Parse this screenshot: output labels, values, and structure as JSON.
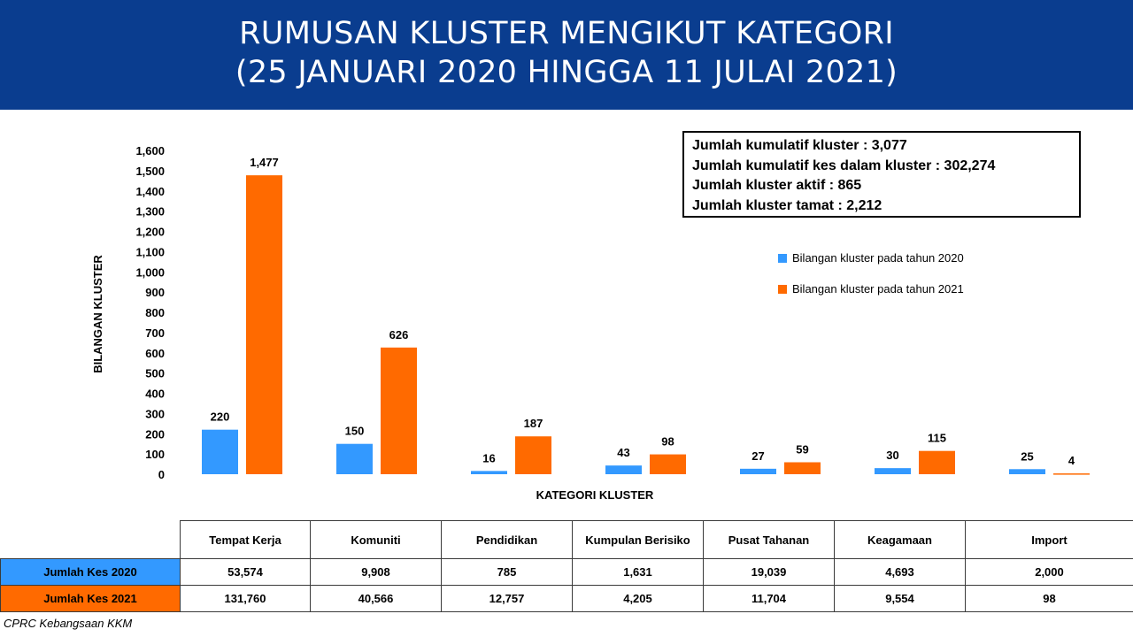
{
  "header": {
    "title_line1": "RUMUSAN KLUSTER MENGIKUT KATEGORI",
    "title_line2": "(25 JANUARI 2020 HINGGA 11 JULAI 2021)"
  },
  "summary": {
    "line1": "Jumlah kumulatif kluster : 3,077",
    "line2": "Jumlah kumulatif kes dalam kluster : 302,274",
    "line3": "Jumlah kluster aktif : 865",
    "line4": "Jumlah kluster tamat : 2,212"
  },
  "legend": {
    "item1": "Bilangan kluster pada tahun 2020",
    "item2": "Bilangan kluster pada tahun 2021"
  },
  "colors": {
    "series2020": "#3399ff",
    "series2021": "#ff6a00",
    "banner": "#0a3d8f"
  },
  "chart_data": {
    "type": "bar",
    "xlabel": "KATEGORI KLUSTER",
    "ylabel": "BILANGAN KLUSTER",
    "ylim": [
      0,
      1600
    ],
    "yticks": [
      "0",
      "100",
      "200",
      "300",
      "400",
      "500",
      "600",
      "700",
      "800",
      "900",
      "1,000",
      "1,100",
      "1,200",
      "1,300",
      "1,400",
      "1,500",
      "1,600"
    ],
    "categories": [
      "Tempat Kerja",
      "Komuniti",
      "Pendidikan",
      "Kumpulan Berisiko",
      "Pusat Tahanan",
      "Keagamaan",
      "Import"
    ],
    "series": [
      {
        "name": "Bilangan kluster pada tahun 2020",
        "values": [
          220,
          150,
          16,
          43,
          27,
          30,
          25
        ],
        "labels": [
          "220",
          "150",
          "16",
          "43",
          "27",
          "30",
          "25"
        ]
      },
      {
        "name": "Bilangan kluster pada tahun 2021",
        "values": [
          1477,
          626,
          187,
          98,
          59,
          115,
          4
        ],
        "labels": [
          "1,477",
          "626",
          "187",
          "98",
          "59",
          "115",
          "4"
        ]
      }
    ],
    "grid": false,
    "legend_position": "top-right"
  },
  "table": {
    "headers": [
      "Tempat Kerja",
      "Komuniti",
      "Pendidikan",
      "Kumpulan Berisiko",
      "Pusat Tahanan",
      "Keagamaan",
      "Import"
    ],
    "rows": [
      {
        "label": "Jumlah Kes 2020",
        "values": [
          "53,574",
          "9,908",
          "785",
          "1,631",
          "19,039",
          "4,693",
          "2,000"
        ]
      },
      {
        "label": "Jumlah Kes 2021",
        "values": [
          "131,760",
          "40,566",
          "12,757",
          "4,205",
          "11,704",
          "9,554",
          "98"
        ]
      }
    ]
  },
  "source": "CPRC Kebangsaan KKM"
}
